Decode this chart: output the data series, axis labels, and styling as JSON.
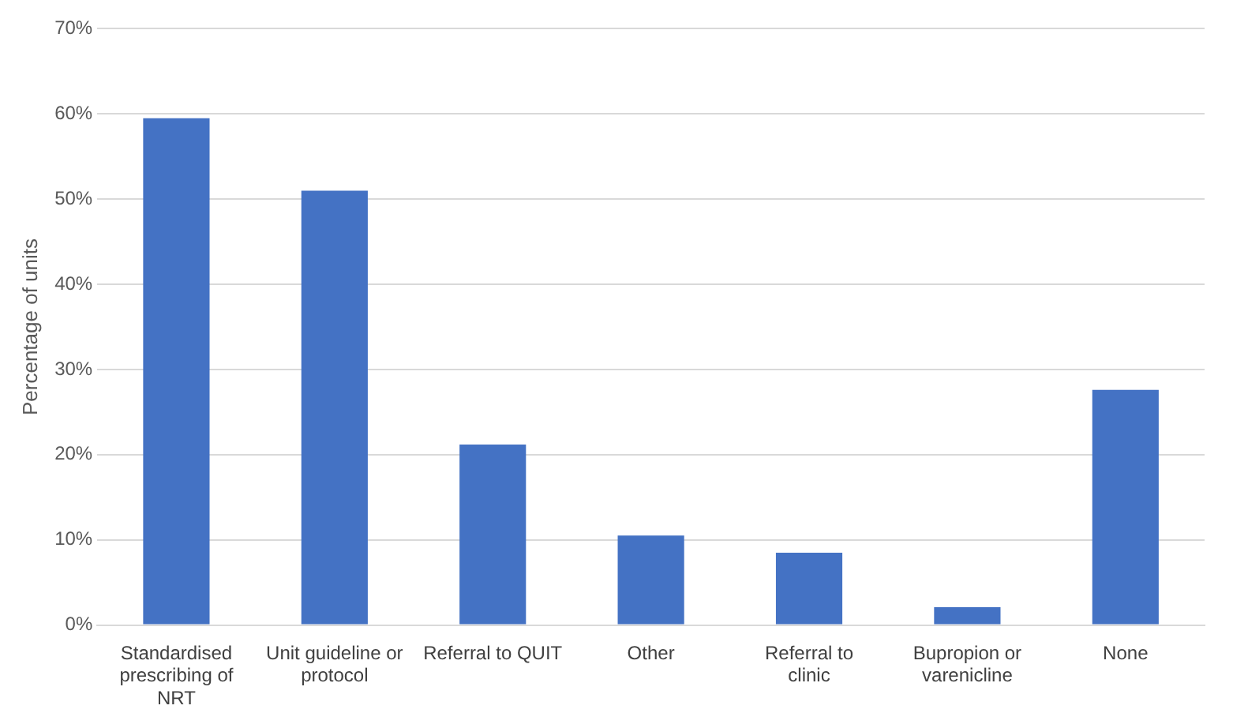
{
  "chart_data": {
    "type": "bar",
    "ylabel": "Percentage of units",
    "categories": [
      "Standardised prescribing of NRT",
      "Unit guideline or protocol",
      "Referral to QUIT",
      "Other",
      "Referral to clinic",
      "Bupropion or varenicline",
      "None"
    ],
    "values": [
      59.5,
      51.0,
      21.2,
      10.5,
      8.5,
      2.1,
      27.6
    ],
    "color": "#4472c4",
    "ylim": [
      0,
      70
    ],
    "yticks": [
      {
        "value": 0,
        "label": "0%"
      },
      {
        "value": 10,
        "label": "10%"
      },
      {
        "value": 20,
        "label": "20%"
      },
      {
        "value": 30,
        "label": "30%"
      },
      {
        "value": 40,
        "label": "40%"
      },
      {
        "value": 50,
        "label": "50%"
      },
      {
        "value": 60,
        "label": "60%"
      },
      {
        "value": 70,
        "label": "70%"
      }
    ],
    "grid": "y",
    "legend": false
  }
}
